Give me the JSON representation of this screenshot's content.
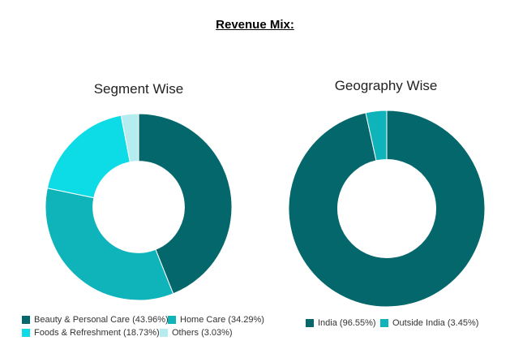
{
  "page": {
    "title": "Revenue Mix:"
  },
  "chart_data": [
    {
      "type": "pie",
      "title": "Segment Wise",
      "categories": [
        "Beauty & Personal Care (43.96%)",
        "Home Care (34.29%)",
        "Foods & Refreshment (18.73%)",
        "Others (3.03%)"
      ],
      "values": [
        43.96,
        34.29,
        18.73,
        3.03
      ],
      "colors": [
        "#03676b",
        "#0fb4bb",
        "#0ddbe6",
        "#b4ecef"
      ],
      "donut": true,
      "legend": "bottom"
    },
    {
      "type": "pie",
      "title": "Geography Wise",
      "categories": [
        "India (96.55%)",
        "Outside India (3.45%)"
      ],
      "values": [
        96.55,
        3.45
      ],
      "colors": [
        "#03676b",
        "#0fb4bb"
      ],
      "donut": true,
      "legend": "bottom"
    }
  ]
}
